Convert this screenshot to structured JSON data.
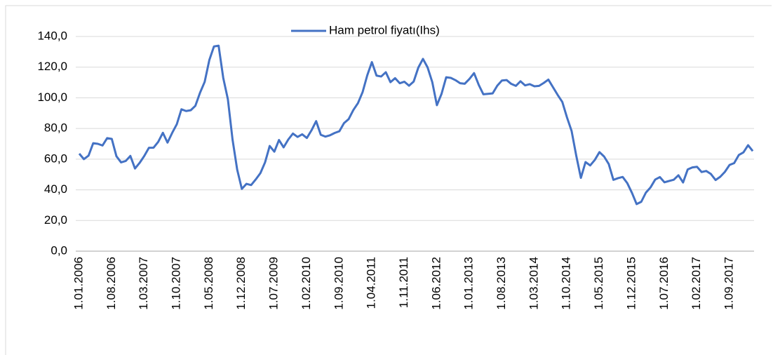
{
  "chart_data": {
    "type": "line",
    "categories": [
      "1.01.2006",
      null,
      null,
      null,
      null,
      null,
      null,
      "1.08.2006",
      null,
      null,
      null,
      null,
      null,
      null,
      "1.03.2007",
      null,
      null,
      null,
      null,
      null,
      null,
      "1.10.2007",
      null,
      null,
      null,
      null,
      null,
      null,
      "1.05.2008",
      null,
      null,
      null,
      null,
      null,
      null,
      "1.12.2008",
      null,
      null,
      null,
      null,
      null,
      null,
      "1.07.2009",
      null,
      null,
      null,
      null,
      null,
      null,
      "1.02.2010",
      null,
      null,
      null,
      null,
      null,
      null,
      "1.09.2010",
      null,
      null,
      null,
      null,
      null,
      null,
      "1.04.2011",
      null,
      null,
      null,
      null,
      null,
      null,
      "1.11.2011",
      null,
      null,
      null,
      null,
      null,
      null,
      "1.06.2012",
      null,
      null,
      null,
      null,
      null,
      null,
      "1.01.2013",
      null,
      null,
      null,
      null,
      null,
      null,
      "1.08.2013",
      null,
      null,
      null,
      null,
      null,
      null,
      "1.03.2014",
      null,
      null,
      null,
      null,
      null,
      null,
      "1.10.2014",
      null,
      null,
      null,
      null,
      null,
      null,
      "1.05.2015",
      null,
      null,
      null,
      null,
      null,
      null,
      "1.12.2015",
      null,
      null,
      null,
      null,
      null,
      null,
      "1.07.2016",
      null,
      null,
      null,
      null,
      null,
      null,
      "1.02.2017",
      null,
      null,
      null,
      null,
      null,
      null,
      "1.09.2017",
      null,
      null,
      null,
      null,
      null
    ],
    "series": [
      {
        "name": "Ham petrol fiyatı(Ihs)",
        "color": "#4472c4",
        "values": [
          63.6,
          60.0,
          62.3,
          70.4,
          70.0,
          68.9,
          73.7,
          73.2,
          61.9,
          57.9,
          58.8,
          62.1,
          53.9,
          57.6,
          62.1,
          67.4,
          67.5,
          71.3,
          77.2,
          70.8,
          77.1,
          82.8,
          92.5,
          91.4,
          91.9,
          94.8,
          103.3,
          110.4,
          124.6,
          133.5,
          134.0,
          113.0,
          99.0,
          72.8,
          53.2,
          40.6,
          43.9,
          43.1,
          46.8,
          50.9,
          57.9,
          68.6,
          64.9,
          72.5,
          67.7,
          72.8,
          76.7,
          74.5,
          76.2,
          73.8,
          78.8,
          84.8,
          75.9,
          74.7,
          75.6,
          77.1,
          78.2,
          83.5,
          86.1,
          92.0,
          96.5,
          103.7,
          114.6,
          123.3,
          114.5,
          113.9,
          116.7,
          110.2,
          112.8,
          109.5,
          110.5,
          107.9,
          110.6,
          119.7,
          125.4,
          119.8,
          110.3,
          95.2,
          102.6,
          113.4,
          113.0,
          111.5,
          109.5,
          109.2,
          112.3,
          116.1,
          108.5,
          102.3,
          102.6,
          102.9,
          107.9,
          111.3,
          111.6,
          109.1,
          107.8,
          110.8,
          108.1,
          108.9,
          107.5,
          107.8,
          109.7,
          111.9,
          106.9,
          101.9,
          97.3,
          87.3,
          78.4,
          62.3,
          47.8,
          58.1,
          55.9,
          59.5,
          64.6,
          61.7,
          56.8,
          46.5,
          47.6,
          48.4,
          44.3,
          38.0,
          30.7,
          32.2,
          38.2,
          41.6,
          46.7,
          48.3,
          44.9,
          45.8,
          46.6,
          49.5,
          44.8,
          53.3,
          54.6,
          55.0,
          51.6,
          52.3,
          50.3,
          46.4,
          48.5,
          51.7,
          56.2,
          57.4,
          62.7,
          64.4,
          69.1,
          65.3
        ]
      }
    ],
    "ylim": [
      0,
      140
    ],
    "yticks": [
      {
        "value": 0,
        "label": "0,0"
      },
      {
        "value": 20,
        "label": "20,0"
      },
      {
        "value": 40,
        "label": "40,0"
      },
      {
        "value": 60,
        "label": "60,0"
      },
      {
        "value": 80,
        "label": "80,0"
      },
      {
        "value": 100,
        "label": "100,0"
      },
      {
        "value": 120,
        "label": "120,0"
      },
      {
        "value": 140,
        "label": "140,0"
      }
    ],
    "grid": true,
    "legend": "top"
  }
}
